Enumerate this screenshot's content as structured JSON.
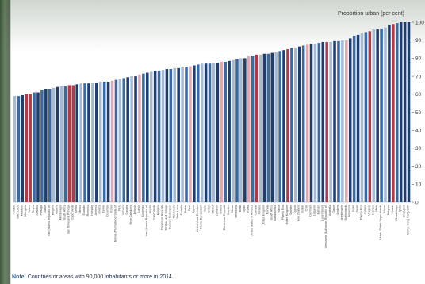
{
  "chart_data": {
    "type": "bar",
    "title": "Proportion urban (per cent)",
    "xlabel": "",
    "ylabel": "",
    "ylim": [
      0,
      100
    ],
    "yticks": [
      0,
      10,
      20,
      30,
      40,
      50,
      60,
      70,
      80,
      90,
      100
    ],
    "grid": false,
    "colors": {
      "navy": "#1f3e6e",
      "mid": "#3a6aa5",
      "light": "#a7bad1",
      "red": "#b03a48",
      "pink": "#e2a8ae"
    },
    "categories": [
      "Croatia",
      "Saint Lucia",
      "Maldives",
      "Mongolia",
      "Poland",
      "Ghana",
      "Slovakia",
      "Portugal",
      "Gabon",
      "Iran (Islamic Republic of)",
      "Bulgaria",
      "Albania",
      "Montenegro",
      "South Africa",
      "San Tome and Principe",
      "Cabo Verde",
      "Serbia",
      "Mexico",
      "Ecuador",
      "Romania",
      "Hungary",
      "Armenia",
      "Greece",
      "Turkey",
      "Colombia",
      "Korea",
      "Bolivia (Plurinational State of)",
      "Peru",
      "Jamaica",
      "Guyana",
      "New Caledonia",
      "Belarus",
      "Latvia",
      "Colombia",
      "Iran (Islamic Republic of)",
      "Angola",
      "Cabo Verde",
      "Bulgaria",
      "Dominican Republic",
      "Trinidad and Tobago",
      "Russian Federation",
      "Micronesia",
      "Saint Lucia",
      "Ecuador",
      "Belize",
      "Peru",
      "Cyprus",
      "United Arab Emirates",
      "Brunei Darussalam",
      "Cuba",
      "Jordan",
      "Mexico",
      "Lebanon",
      "Greece",
      "Dominican Republic",
      "Sweden",
      "Oman",
      "Venezuela",
      "Brazil",
      "Spain",
      "Korea",
      "United States of America",
      "Canada",
      "Finland",
      "United Kingdom",
      "Norway",
      "South Africa",
      "Saudi Arabia",
      "France",
      "Puerto Rico",
      "United Kingdom",
      "Sweden",
      "Cyprus",
      "New Zealand",
      "Jordan",
      "Chile",
      "Denmark",
      "Lebanon",
      "Bahrain",
      "Luxembourg",
      "Venezuela (Bolivarian Republic of)",
      "Australia",
      "Gabon",
      "Andorra",
      "Liechtenstein",
      "Netherlands",
      "Argentina",
      "Israel",
      "Japan",
      "Puerto Rico",
      "Iceland",
      "Uruguay",
      "Monaco",
      "Malta",
      "United States Virgin Islands",
      "Nauru",
      "Belgium",
      "Kuwait",
      "Guadeloupe",
      "Qatar",
      "Singapore",
      "China, Hong Kong SAR"
    ],
    "values": [
      59,
      59,
      59.5,
      60,
      60,
      61,
      61,
      62.5,
      63,
      63,
      63.5,
      64,
      64.5,
      64.5,
      65,
      65,
      65.5,
      66,
      66,
      66,
      66.5,
      66.5,
      67,
      67,
      67,
      67.5,
      68,
      68.5,
      69,
      69.5,
      70,
      70,
      71,
      71.5,
      72,
      72.5,
      73,
      73,
      73.5,
      74,
      74,
      74.5,
      74.5,
      75,
      75,
      75.5,
      76,
      76.5,
      77,
      77,
      77,
      77.5,
      77.5,
      78,
      78,
      78.5,
      79,
      79.5,
      80,
      80,
      81,
      81.5,
      82,
      82,
      82.5,
      82.5,
      83,
      83.5,
      84,
      84.5,
      85,
      85.5,
      86,
      86.5,
      87,
      87.5,
      88,
      88,
      88.5,
      89,
      89,
      89,
      89.5,
      89.5,
      90,
      90,
      91,
      92.5,
      93,
      94,
      94.5,
      95,
      96,
      96,
      96.5,
      97,
      98.5,
      99,
      99.5,
      100,
      100,
      100
    ],
    "bar_colors": [
      "light",
      "mid",
      "navy",
      "red",
      "red",
      "mid",
      "navy",
      "mid",
      "navy",
      "mid",
      "light",
      "navy",
      "light",
      "mid",
      "red",
      "red",
      "navy",
      "light",
      "mid",
      "navy",
      "light",
      "navy",
      "light",
      "mid",
      "navy",
      "pink",
      "mid",
      "light",
      "mid",
      "navy",
      "light",
      "navy",
      "pink",
      "mid",
      "navy",
      "light",
      "navy",
      "mid",
      "light",
      "navy",
      "mid",
      "light",
      "navy",
      "light",
      "mid",
      "pink",
      "navy",
      "mid",
      "light",
      "navy",
      "mid",
      "light",
      "navy",
      "pink",
      "mid",
      "navy",
      "light",
      "mid",
      "light",
      "navy",
      "pink",
      "mid",
      "red",
      "light",
      "navy",
      "mid",
      "navy",
      "light",
      "mid",
      "navy",
      "red",
      "mid",
      "light",
      "navy",
      "mid",
      "pink",
      "navy",
      "light",
      "mid",
      "navy",
      "red",
      "light",
      "navy",
      "mid",
      "light",
      "pink",
      "navy",
      "mid",
      "navy",
      "light",
      "mid",
      "red",
      "light",
      "navy",
      "mid",
      "light",
      "navy",
      "red",
      "mid",
      "navy",
      "navy",
      "navy"
    ]
  },
  "note": {
    "label": "Note:",
    "text": "Countries or areas with 90,000 inhabitants or more in 2014."
  }
}
